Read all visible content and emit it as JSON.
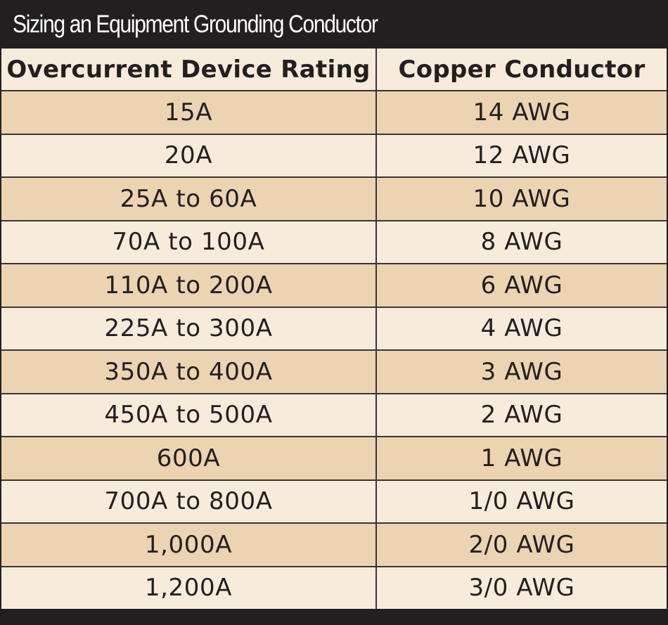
{
  "title": "Sizing an Equipment Grounding Conductor",
  "colors": {
    "header_bar": "#231f20",
    "row_shaded": "#ecd3b2",
    "row_light": "#f7ecdc",
    "text": "#231f20"
  },
  "columns": [
    "Overcurrent Device Rating",
    "Copper Conductor"
  ],
  "rows": [
    {
      "rating": "15A",
      "conductor": "14 AWG"
    },
    {
      "rating": "20A",
      "conductor": "12 AWG"
    },
    {
      "rating": "25A to 60A",
      "conductor": "10 AWG"
    },
    {
      "rating": "70A to 100A",
      "conductor": "8 AWG"
    },
    {
      "rating": "110A to 200A",
      "conductor": "6 AWG"
    },
    {
      "rating": "225A to 300A",
      "conductor": "4 AWG"
    },
    {
      "rating": "350A to 400A",
      "conductor": "3 AWG"
    },
    {
      "rating": "450A to 500A",
      "conductor": "2 AWG"
    },
    {
      "rating": "600A",
      "conductor": "1 AWG"
    },
    {
      "rating": "700A to 800A",
      "conductor": "1/0 AWG"
    },
    {
      "rating": "1,000A",
      "conductor": "2/0 AWG"
    },
    {
      "rating": "1,200A",
      "conductor": "3/0 AWG"
    }
  ]
}
